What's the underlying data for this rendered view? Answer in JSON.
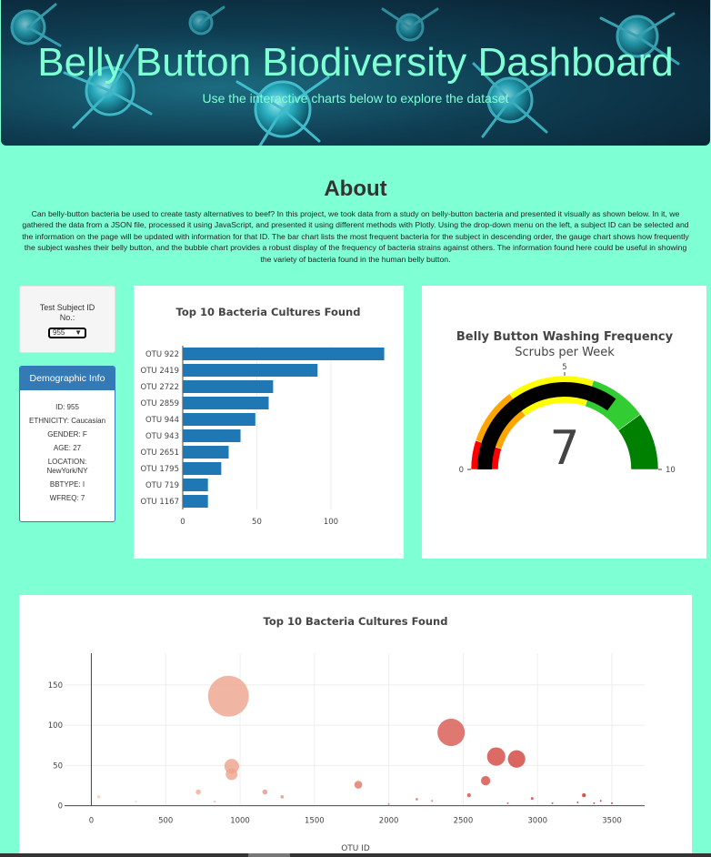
{
  "header": {
    "title": "Belly Button Biodiversity Dashboard",
    "subtitle": "Use the interactive charts below to explore the dataset"
  },
  "about": {
    "title": "About",
    "text": "Can belly-button bacteria be used to create tasty alternatives to beef? In this project, we took data from a study on belly-button bacteria and presented it visually as shown below. In it, we gathered the data from a JSON file, processed it using JavaScript, and presented it using different methods with Plotly. Using the drop-down menu on the left, a subject ID can be selected and the information on the page will be updated with information for that ID. The bar chart lists the most frequent bacteria for the subject in descending order, the gauge chart shows how frequently the subject washes their belly button, and the bubble chart provides a robust display of the frequency of bacteria strains against others. The information found here could be useful in showing the variety of bacteria found in the human belly button."
  },
  "selector": {
    "label": "Test Subject ID No.:",
    "selected": "955"
  },
  "demographics": {
    "title": "Demographic Info",
    "lines": [
      "ID: 955",
      "ETHNICITY: Caucasian",
      "GENDER: F",
      "AGE: 27",
      "LOCATION: NewYork/NY",
      "BBTYPE: I",
      "WFREQ: 7"
    ]
  },
  "colors": {
    "background": "#7fffd4",
    "accent": "#7fffd4",
    "panel_blue": "#337ab7",
    "bar_blue": "#1f77b4"
  },
  "chart_data": [
    {
      "type": "bar",
      "orientation": "horizontal",
      "title": "Top 10 Bacteria Cultures Found",
      "categories": [
        "OTU 922",
        "OTU 2419",
        "OTU 2722",
        "OTU 2859",
        "OTU 944",
        "OTU 943",
        "OTU 2651",
        "OTU 1795",
        "OTU 719",
        "OTU 1167"
      ],
      "values": [
        136,
        91,
        61,
        58,
        49,
        39,
        31,
        26,
        17,
        17
      ],
      "xticks": [
        0,
        50,
        100
      ],
      "xlim": [
        0,
        143
      ],
      "grid": true,
      "color": "#1f77b4"
    },
    {
      "type": "gauge",
      "title": "Belly Button Washing Frequency",
      "subtitle": "Scrubs per Week",
      "value": 7,
      "range": [
        0,
        10
      ],
      "ticks": [
        0,
        5,
        10
      ],
      "bands": [
        {
          "from": 0,
          "to": 1,
          "color": "#ff0000"
        },
        {
          "from": 1,
          "to": 3,
          "color": "#ffa500"
        },
        {
          "from": 3,
          "to": 6,
          "color": "#ffff00"
        },
        {
          "from": 6,
          "to": 8,
          "color": "#32cd32"
        },
        {
          "from": 8,
          "to": 10,
          "color": "#008000"
        }
      ],
      "bar_color": "#000000"
    },
    {
      "type": "scatter",
      "title": "Top 10 Bacteria Cultures Found",
      "xlabel": "OTU ID",
      "xticks": [
        0,
        500,
        1000,
        1500,
        2000,
        2500,
        3000,
        3500
      ],
      "yticks": [
        0,
        50,
        100,
        150
      ],
      "xlim": [
        -180,
        3720
      ],
      "ylim": [
        -5,
        160
      ],
      "grid": true,
      "points": [
        {
          "x": 922,
          "y": 136
        },
        {
          "x": 2419,
          "y": 91
        },
        {
          "x": 2722,
          "y": 61
        },
        {
          "x": 2859,
          "y": 58
        },
        {
          "x": 944,
          "y": 49
        },
        {
          "x": 943,
          "y": 39
        },
        {
          "x": 2651,
          "y": 31
        },
        {
          "x": 1795,
          "y": 26
        },
        {
          "x": 719,
          "y": 17
        },
        {
          "x": 1167,
          "y": 17
        },
        {
          "x": 2539,
          "y": 13
        },
        {
          "x": 3312,
          "y": 13
        },
        {
          "x": 1283,
          "y": 11
        },
        {
          "x": 50,
          "y": 11
        },
        {
          "x": 2188,
          "y": 8
        },
        {
          "x": 2964,
          "y": 9
        },
        {
          "x": 3425,
          "y": 6
        },
        {
          "x": 2291,
          "y": 6
        },
        {
          "x": 830,
          "y": 5
        },
        {
          "x": 300,
          "y": 5
        },
        {
          "x": 3270,
          "y": 4
        },
        {
          "x": 3100,
          "y": 3
        },
        {
          "x": 2800,
          "y": 3
        },
        {
          "x": 3380,
          "y": 3
        },
        {
          "x": 2000,
          "y": 2
        },
        {
          "x": 3500,
          "y": 3
        }
      ]
    }
  ]
}
